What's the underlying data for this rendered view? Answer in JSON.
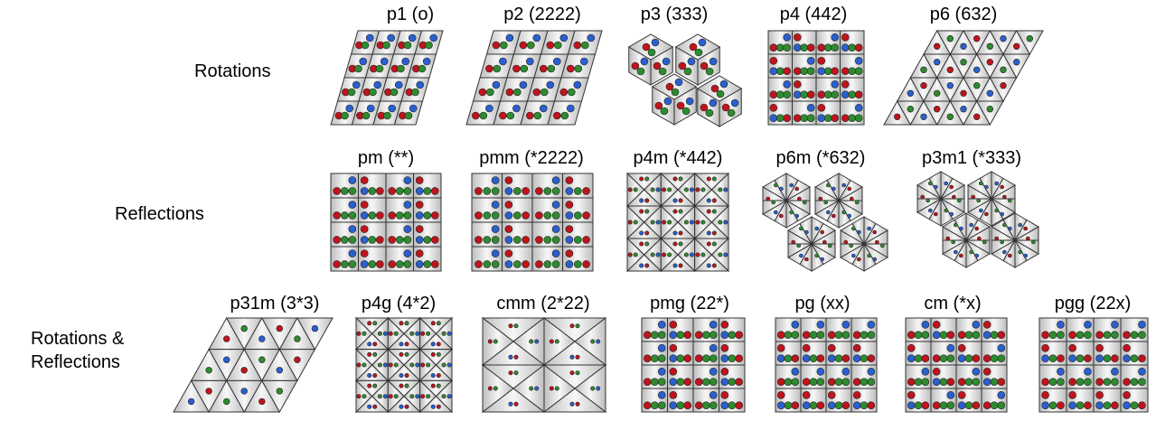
{
  "rows": [
    {
      "id": "rotations",
      "label": [
        "Rotations"
      ],
      "groups": [
        {
          "name": "p1 (o)",
          "shape": "parallelogram"
        },
        {
          "name": "p2 (2222)",
          "shape": "parallelogram"
        },
        {
          "name": "p3 (333)",
          "shape": "hexagons"
        },
        {
          "name": "p4 (442)",
          "shape": "square"
        },
        {
          "name": "p6 (632)",
          "shape": "rhombus"
        }
      ]
    },
    {
      "id": "reflections",
      "label": [
        "Reflections"
      ],
      "groups": [
        {
          "name": "pm (**)",
          "shape": "rect"
        },
        {
          "name": "pmm (*2222)",
          "shape": "rect"
        },
        {
          "name": "p4m (*442)",
          "shape": "square"
        },
        {
          "name": "p6m (*632)",
          "shape": "hexagons"
        },
        {
          "name": "p3m1 (*333)",
          "shape": "hexagons"
        }
      ]
    },
    {
      "id": "rotations-reflections",
      "label": [
        "Rotations &",
        "Reflections"
      ],
      "groups": [
        {
          "name": "p31m (3*3)",
          "shape": "rhombus"
        },
        {
          "name": "p4g (4*2)",
          "shape": "square"
        },
        {
          "name": "cmm (2*22)",
          "shape": "rect"
        },
        {
          "name": "pmg (22*)",
          "shape": "rect"
        },
        {
          "name": "pg (xx)",
          "shape": "rect"
        },
        {
          "name": "cm (*x)",
          "shape": "rect"
        },
        {
          "name": "pgg (22x)",
          "shape": "rect"
        }
      ]
    }
  ],
  "colors": {
    "red": "#c0141c",
    "green": "#2e8b2e",
    "blue": "#2a5fcf",
    "cell_fill": "#cfcfcf",
    "cell_stroke": "#333333"
  }
}
